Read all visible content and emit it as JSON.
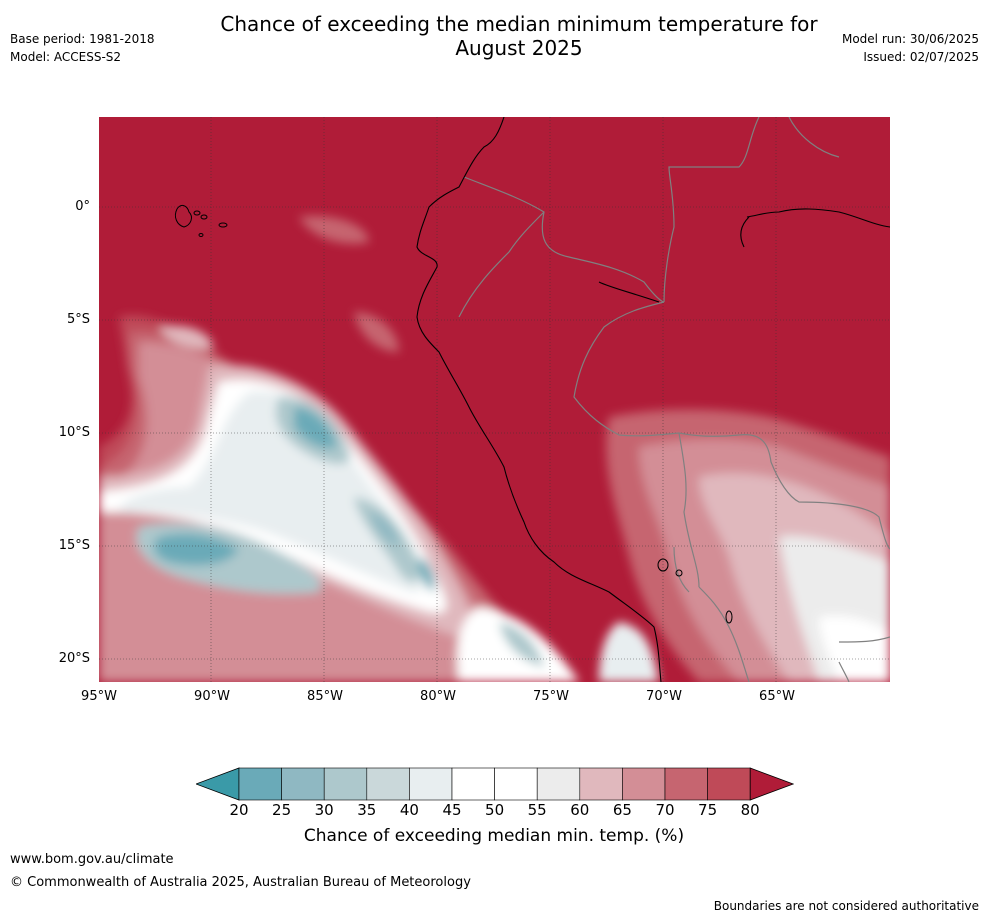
{
  "title_line1": "Chance of exceeding the median minimum temperature for",
  "title_line2": "August 2025",
  "meta": {
    "base_period": "Base period: 1981-2018",
    "model": "Model: ACCESS-S2",
    "model_run": "Model run: 30/06/2025",
    "issued": "Issued: 02/07/2025"
  },
  "map": {
    "lat_labels": [
      "0°",
      "5°S",
      "10°S",
      "15°S",
      "20°S"
    ],
    "lon_labels": [
      "95°W",
      "90°W",
      "85°W",
      "80°W",
      "75°W",
      "70°W",
      "65°W"
    ],
    "coastline_color": "#000000",
    "border_color": "#808080",
    "background_class_color": "#b01c38"
  },
  "colorbar": {
    "ticks": [
      "20",
      "25",
      "30",
      "35",
      "40",
      "45",
      "50",
      "55",
      "60",
      "65",
      "70",
      "75",
      "80"
    ],
    "colors": [
      "#3a9aa8",
      "#6aaab8",
      "#8fb8c2",
      "#adc8cc",
      "#cad8da",
      "#e8eef0",
      "#ffffff",
      "#ffffff",
      "#ececec",
      "#e0b8bd",
      "#d38e96",
      "#c66570",
      "#bf4a58",
      "#b01c38"
    ],
    "label": "Chance of exceeding median min. temp. (%)"
  },
  "footer": {
    "url": "www.bom.gov.au/climate",
    "copyright": "© Commonwealth of Australia 2025, Australian Bureau of Meteorology",
    "note": "Boundaries are not considered authoritative"
  }
}
